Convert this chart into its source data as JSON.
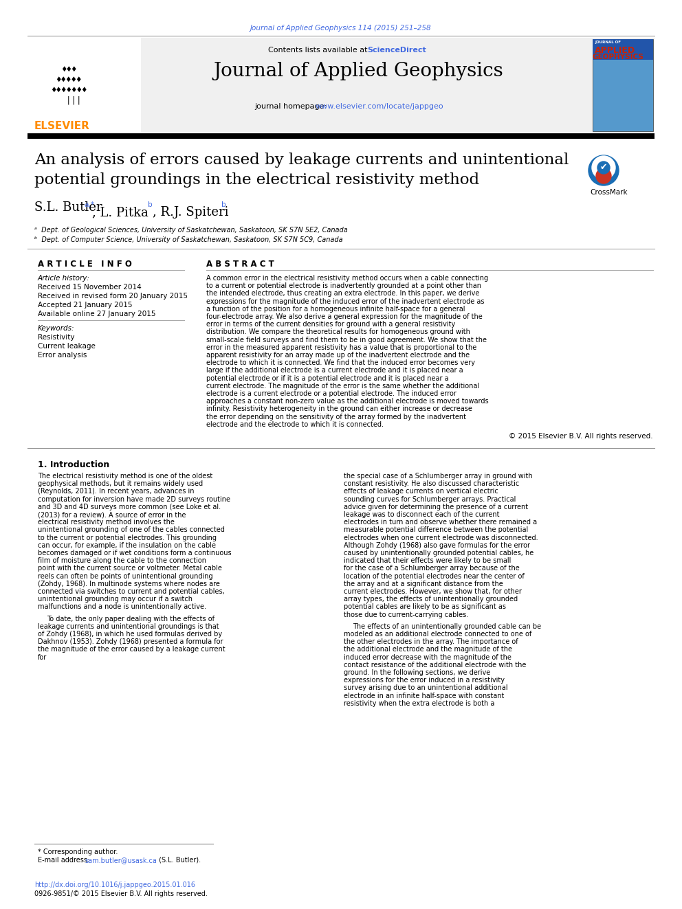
{
  "journal_ref": "Journal of Applied Geophysics 114 (2015) 251–258",
  "journal_name": "Journal of Applied Geophysics",
  "contents_text": "Contents lists available at ",
  "sciencedirect": "ScienceDirect",
  "homepage_text": "journal homepage: ",
  "homepage_url": "www.elsevier.com/locate/jappgeo",
  "title_line1": "An analysis of errors caused by leakage currents and unintentional",
  "title_line2": "potential groundings in the electrical resistivity method",
  "affil_a": "ᵃ  Dept. of Geological Sciences, University of Saskatchewan, Saskatoon, SK S7N 5E2, Canada",
  "affil_b": "ᵇ  Dept. of Computer Science, University of Saskatchewan, Saskatoon, SK S7N 5C9, Canada",
  "article_info_title": "A R T I C L E   I N F O",
  "abstract_title": "A B S T R A C T",
  "article_history_label": "Article history:",
  "received": "Received 15 November 2014",
  "revised": "Received in revised form 20 January 2015",
  "accepted": "Accepted 21 January 2015",
  "available": "Available online 27 January 2015",
  "keywords_label": "Keywords:",
  "kw1": "Resistivity",
  "kw2": "Current leakage",
  "kw3": "Error analysis",
  "abstract_text": "A common error in the electrical resistivity method occurs when a cable connecting to a current or potential electrode is inadvertently grounded at a point other than the intended electrode, thus creating an extra electrode. In this paper, we derive expressions for the magnitude of the induced error of the inadvertent electrode as a function of the position for a homogeneous infinite half-space for a general four-electrode array. We also derive a general expression for the magnitude of the error in terms of the current densities for ground with a general resistivity distribution. We compare the theoretical results for homogeneous ground with small-scale field surveys and find them to be in good agreement. We show that the error in the measured apparent resistivity has a value that is proportional to the apparent resistivity for an array made up of the inadvertent electrode and the electrode to which it is connected. We find that the induced error becomes very large if the additional electrode is a current electrode and it is placed near a potential electrode or if it is a potential electrode and it is placed near a current electrode. The magnitude of the error is the same whether the additional electrode is a current electrode or a potential electrode. The induced error approaches a constant non-zero value as the additional electrode is moved towards infinity. Resistivity heterogeneity in the ground can either increase or decrease the error depending on the sensitivity of the array formed by the inadvertent electrode and the electrode to which it is connected.",
  "copyright": "© 2015 Elsevier B.V. All rights reserved.",
  "intro_title": "1. Introduction",
  "intro_text_left": "The electrical resistivity method is one of the oldest geophysical methods, but it remains widely used (Reynolds, 2011). In recent years, advances in computation for inversion have made 2D surveys routine and 3D and 4D surveys more common (see Loke et al. (2013) for a review). A source of error in the electrical resistivity method involves the unintentional grounding of one of the cables connected to the current or potential electrodes. This grounding can occur, for example, if the insulation on the cable becomes damaged or if wet conditions form a continuous film of moisture along the cable to the connection point with the current source or voltmeter. Metal cable reels can often be points of unintentional grounding (Zohdy, 1968). In multinode systems where nodes are connected via switches to current and potential cables, unintentional grounding may occur if a switch malfunctions and a node is unintentionally active.\n\nTo date, the only paper dealing with the effects of leakage currents and unintentional groundings is that of Zohdy (1968), in which he used formulas derived by Dakhnov (1953). Zohdy (1968) presented a formula for the magnitude of the error caused by a leakage current for",
  "intro_text_right": "the special case of a Schlumberger array in ground with constant resistivity. He also discussed characteristic effects of leakage currents on vertical electric sounding curves for Schlumberger arrays. Practical advice given for determining the presence of a current leakage was to disconnect each of the current electrodes in turn and observe whether there remained a measurable potential difference between the potential electrodes when one current electrode was disconnected. Although Zohdy (1968) also gave formulas for the error caused by unintentionally grounded potential cables, he indicated that their effects were likely to be small for the case of a Schlumberger array because of the location of the potential electrodes near the center of the array and at a significant distance from the current electrodes. However, we show that, for other array types, the effects of unintentionally grounded potential cables are likely to be as significant as those due to current-carrying cables.\n\nThe effects of an unintentionally grounded cable can be modeled as an additional electrode connected to one of the other electrodes in the array. The importance of the additional electrode and the magnitude of the induced error decrease with the magnitude of the contact resistance of the additional electrode with the ground. In the following sections, we derive expressions for the error induced in a resistivity survey arising due to an unintentional additional electrode in an infinite half-space with constant resistivity when the extra electrode is both a",
  "footnote_star": "* Corresponding author.",
  "footnote_email_label": "E-mail address: ",
  "footnote_email_link": "sam.butler@usask.ca",
  "footnote_email_end": " (S.L. Butler).",
  "doi": "http://dx.doi.org/10.1016/j.jappgeo.2015.01.016",
  "issn": "0926-9851/© 2015 Elsevier B.V. All rights reserved.",
  "header_bg": "#f0f0f0",
  "link_color": "#4169E1",
  "orange_color": "#FF8C00",
  "journal_ref_color": "#4169E1"
}
